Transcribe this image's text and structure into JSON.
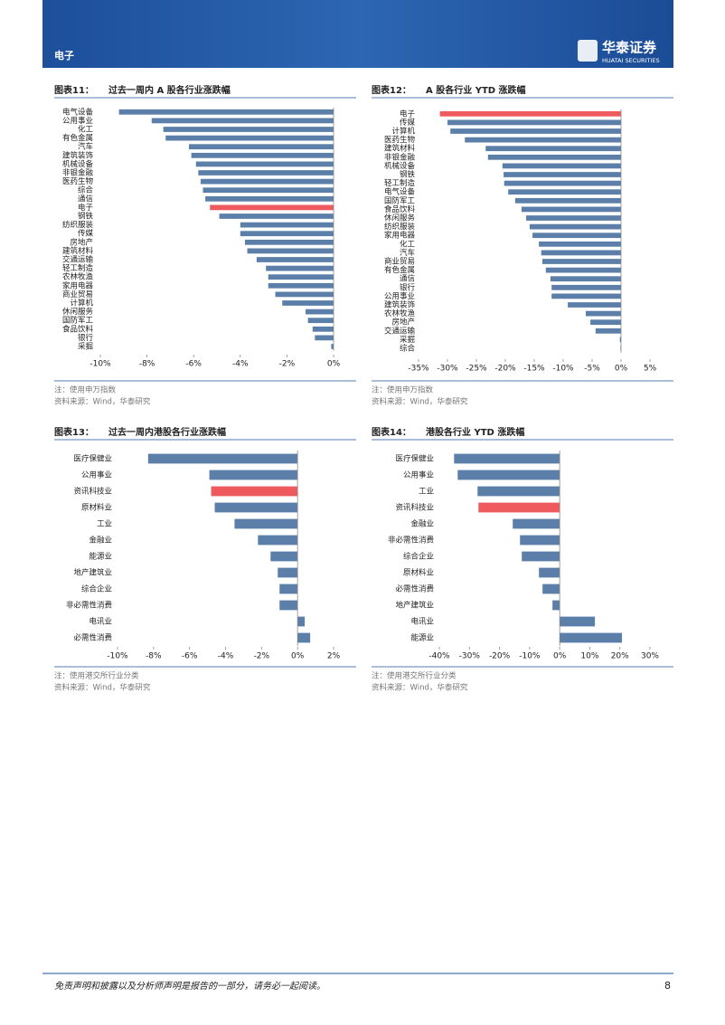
{
  "header": {
    "section": "电子",
    "logo_cn": "华泰证券",
    "logo_en": "HUATAI SECURITIES"
  },
  "chart_data": [
    {
      "type": "bar",
      "orientation": "horizontal",
      "label": "图表11：",
      "title": "过去一周内 A 股各行业涨跌幅",
      "categories": [
        "电气设备",
        "公用事业",
        "化工",
        "有色金属",
        "汽车",
        "建筑装饰",
        "机械设备",
        "非银金融",
        "医药生物",
        "综合",
        "通信",
        "电子",
        "钢铁",
        "纺织服装",
        "传媒",
        "房地产",
        "建筑材料",
        "交通运输",
        "轻工制造",
        "农林牧渔",
        "家用电器",
        "商业贸易",
        "计算机",
        "休闲服务",
        "国防军工",
        "食品饮料",
        "银行",
        "采掘"
      ],
      "values": [
        -9.2,
        -7.8,
        -7.3,
        -7.2,
        -6.2,
        -6.1,
        -5.9,
        -5.8,
        -5.7,
        -5.6,
        -5.5,
        -5.3,
        -4.9,
        -4.0,
        -4.0,
        -3.8,
        -3.7,
        -3.3,
        -2.9,
        -2.8,
        -2.8,
        -2.5,
        -2.2,
        -1.2,
        -1.1,
        -0.9,
        -0.8,
        -0.1
      ],
      "color": "#5b7fa9",
      "highlight": {
        "index": 11,
        "color": "#ee5a5e"
      },
      "xlim": [
        -10,
        0
      ],
      "xticks": [
        {
          "value": -10,
          "label": "-10%"
        },
        {
          "value": -8,
          "label": "-8%"
        },
        {
          "value": -6,
          "label": "-6%"
        },
        {
          "value": -4,
          "label": "-4%"
        },
        {
          "value": -2,
          "label": "-2%"
        },
        {
          "value": 0,
          "label": "0%"
        }
      ],
      "note": "注：使用申万指数",
      "source": "资料来源：Wind，华泰研究"
    },
    {
      "type": "bar",
      "orientation": "horizontal",
      "label": "图表12：",
      "title": "A 股各行业 YTD 涨跌幅",
      "categories": [
        "电子",
        "传媒",
        "计算机",
        "医药生物",
        "建筑材料",
        "非银金融",
        "机械设备",
        "钢铁",
        "轻工制造",
        "电气设备",
        "国防军工",
        "食品饮料",
        "休闲服务",
        "纺织服装",
        "家用电器",
        "化工",
        "汽车",
        "商业贸易",
        "有色金属",
        "通信",
        "银行",
        "公用事业",
        "建筑装饰",
        "农林牧渔",
        "房地产",
        "交通运输",
        "采掘",
        "综合"
      ],
      "values": [
        -31.3,
        -30.0,
        -29.5,
        -27.0,
        -23.4,
        -23.0,
        -20.5,
        -20.3,
        -20.2,
        -19.5,
        -18.3,
        -17.2,
        -16.4,
        -15.8,
        -15.3,
        -14.2,
        -13.8,
        -13.6,
        -13.0,
        -12.2,
        -12.0,
        -12.0,
        -9.2,
        -6.1,
        -5.3,
        -4.4,
        -0.2,
        -0.1
      ],
      "color": "#5b7fa9",
      "highlight": {
        "index": 0,
        "color": "#ee5a5e"
      },
      "xlim": [
        -35,
        5
      ],
      "xticks": [
        {
          "value": -35,
          "label": "-35%"
        },
        {
          "value": -30,
          "label": "-30%"
        },
        {
          "value": -25,
          "label": "-25%"
        },
        {
          "value": -20,
          "label": "-20%"
        },
        {
          "value": -15,
          "label": "-15%"
        },
        {
          "value": -10,
          "label": "-10%"
        },
        {
          "value": -5,
          "label": "-5%"
        },
        {
          "value": 0,
          "label": "0%"
        },
        {
          "value": 5,
          "label": "5%"
        }
      ],
      "note": "注：使用申万指数",
      "source": "资料来源：Wind，华泰研究"
    },
    {
      "type": "bar",
      "orientation": "horizontal",
      "label": "图表13：",
      "title": "过去一周内港股各行业涨跌幅",
      "categories": [
        "医疗保健业",
        "公用事业",
        "资讯科技业",
        "原材料业",
        "工业",
        "金融业",
        "能源业",
        "地产建筑业",
        "综合企业",
        "非必需性消费",
        "电讯业",
        "必需性消费"
      ],
      "values": [
        -8.3,
        -4.9,
        -4.8,
        -4.6,
        -3.5,
        -2.2,
        -1.5,
        -1.1,
        -1.0,
        -1.0,
        0.4,
        0.7
      ],
      "color": "#5b7fa9",
      "highlight": {
        "index": 2,
        "color": "#ee5a5e"
      },
      "xlim": [
        -10,
        2
      ],
      "xticks": [
        {
          "value": -10,
          "label": "-10%"
        },
        {
          "value": -8,
          "label": "-8%"
        },
        {
          "value": -6,
          "label": "-6%"
        },
        {
          "value": -4,
          "label": "-4%"
        },
        {
          "value": -2,
          "label": "-2%"
        },
        {
          "value": 0,
          "label": "0%"
        },
        {
          "value": 2,
          "label": "2%"
        }
      ],
      "note": "注：使用港交所行业分类",
      "source": "资料来源：Wind，华泰研究"
    },
    {
      "type": "bar",
      "orientation": "horizontal",
      "label": "图表14：",
      "title": "港股各行业 YTD 涨跌幅",
      "categories": [
        "医疗保健业",
        "公用事业",
        "工业",
        "资讯科技业",
        "金融业",
        "非必需性消费",
        "综合企业",
        "原材料业",
        "必需性消费",
        "地产建筑业",
        "电讯业",
        "能源业"
      ],
      "values": [
        -35.1,
        -33.9,
        -27.3,
        -27.0,
        -15.6,
        -13.2,
        -12.6,
        -6.9,
        -5.7,
        -2.4,
        11.7,
        20.7
      ],
      "color": "#5b7fa9",
      "highlight": {
        "index": 3,
        "color": "#ee5a5e"
      },
      "xlim": [
        -40,
        30
      ],
      "xticks": [
        {
          "value": -40,
          "label": "-40%"
        },
        {
          "value": -30,
          "label": "-30%"
        },
        {
          "value": -20,
          "label": "-20%"
        },
        {
          "value": -10,
          "label": "-10%"
        },
        {
          "value": 0,
          "label": "0%"
        },
        {
          "value": 10,
          "label": "10%"
        },
        {
          "value": 20,
          "label": "20%"
        },
        {
          "value": 30,
          "label": "30%"
        }
      ],
      "note": "注：使用港交所行业分类",
      "source": "资料来源：Wind，华泰研究"
    }
  ],
  "footer": {
    "disclaimer": "免责声明和披露以及分析师声明是报告的一部分，请务必一起阅读。",
    "page": "8"
  }
}
